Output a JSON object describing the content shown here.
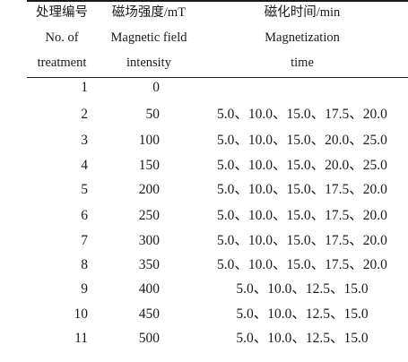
{
  "header": {
    "col1": [
      "处理编号",
      "No. of",
      "treatment"
    ],
    "col2": [
      "磁场强度/mT",
      "Magnetic field",
      "intensity"
    ],
    "col3": [
      "磁化时间/min",
      "Magnetization",
      "time"
    ]
  },
  "rows": [
    {
      "no": "1",
      "intensity": "0",
      "time": ""
    },
    {
      "no": "2",
      "intensity": "50",
      "time": "5.0、10.0、15.0、17.5、20.0"
    },
    {
      "no": "3",
      "intensity": "100",
      "time": "5.0、10.0、15.0、20.0、25.0"
    },
    {
      "no": "4",
      "intensity": "150",
      "time": "5.0、10.0、15.0、20.0、25.0"
    },
    {
      "no": "5",
      "intensity": "200",
      "time": "5.0、10.0、15.0、17.5、20.0"
    },
    {
      "no": "6",
      "intensity": "250",
      "time": "5.0、10.0、15.0、17.5、20.0"
    },
    {
      "no": "7",
      "intensity": "300",
      "time": "5.0、10.0、15.0、17.5、20.0"
    },
    {
      "no": "8",
      "intensity": "350",
      "time": "5.0、10.0、15.0、17.5、20.0"
    },
    {
      "no": "9",
      "intensity": "400",
      "time": "5.0、10.0、12.5、15.0"
    },
    {
      "no": "10",
      "intensity": "450",
      "time": "5.0、10.0、12.5、15.0"
    },
    {
      "no": "11",
      "intensity": "500",
      "time": "5.0、10.0、12.5、15.0"
    }
  ]
}
